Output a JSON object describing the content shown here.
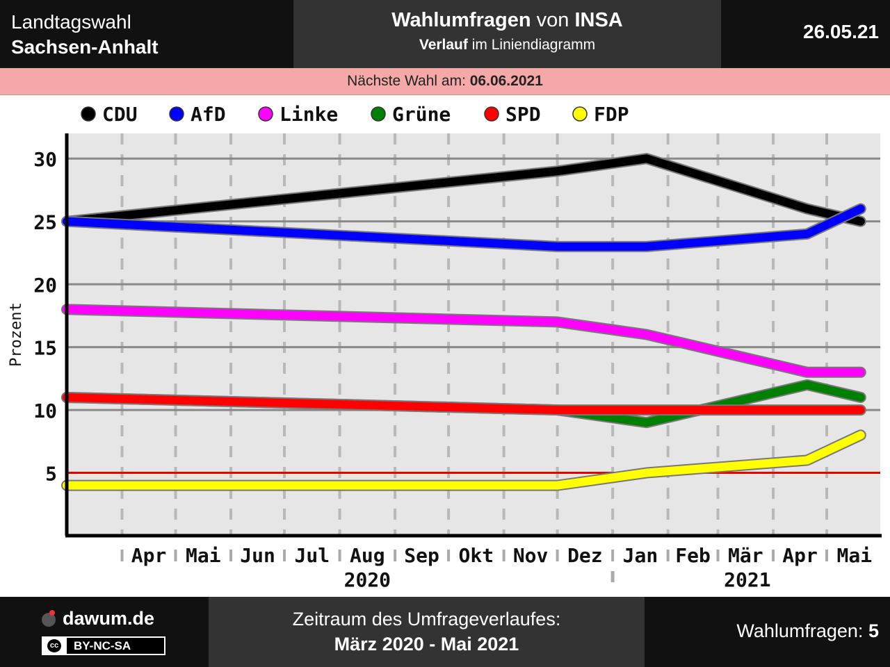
{
  "header": {
    "left_line1": "Landtagswahl",
    "left_line2": "Sachsen-Anhalt",
    "title_bold": "Wahlumfragen",
    "title_mid": "von",
    "title_institute": "INSA",
    "subtitle_bold": "Verlauf",
    "subtitle_rest": "im Liniendiagramm",
    "date": "26.05.21"
  },
  "next_election": {
    "label": "Nächste Wahl am:",
    "date": "06.06.2021"
  },
  "colors": {
    "header_bg": "#111111",
    "header_mid_bg": "#333333",
    "next_bar_bg": "#f4a8a8",
    "plot_bg": "#e6e6e6",
    "threshold": "#ee0000"
  },
  "chart_data": {
    "type": "line",
    "ylabel": "Prozent",
    "ylim": [
      0,
      32
    ],
    "yticks": [
      5,
      10,
      15,
      20,
      25,
      30
    ],
    "grid": true,
    "legend_position": "top",
    "threshold_line": 5,
    "x_start": "2020-03",
    "x_end": "2021-05",
    "month_labels": [
      "Apr",
      "Mai",
      "Jun",
      "Jul",
      "Aug",
      "Sep",
      "Okt",
      "Nov",
      "Dez",
      "Jan",
      "Feb",
      "Mär",
      "Apr",
      "Mai"
    ],
    "year_labels": [
      "2020",
      "2021"
    ],
    "x": [
      "2020-03-01",
      "2020-12-01",
      "2021-01-20",
      "2021-04-20",
      "2021-05-20"
    ],
    "series": [
      {
        "name": "CDU",
        "color": "#000000",
        "values": [
          25,
          29,
          30,
          26,
          25
        ]
      },
      {
        "name": "AfD",
        "color": "#0000ff",
        "values": [
          25,
          23,
          23,
          24,
          26
        ]
      },
      {
        "name": "Linke",
        "color": "#ff00ff",
        "values": [
          18,
          17,
          16,
          13,
          13
        ]
      },
      {
        "name": "Grüne",
        "color": "#008000",
        "values": [
          11,
          10,
          9,
          12,
          11
        ]
      },
      {
        "name": "SPD",
        "color": "#ff0000",
        "values": [
          11,
          10,
          10,
          10,
          10
        ]
      },
      {
        "name": "FDP",
        "color": "#ffff00",
        "values": [
          4,
          4,
          5,
          6,
          8
        ]
      }
    ]
  },
  "footer": {
    "site": "dawum.de",
    "license_prefix": "cc",
    "license": "BY-NC-SA",
    "period_label": "Zeitraum des Umfrageverlaufes:",
    "period_value": "März 2020 - Mai 2021",
    "polls_label": "Wahlumfragen:",
    "polls_count": "5"
  }
}
